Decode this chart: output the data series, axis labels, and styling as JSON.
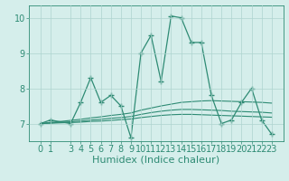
{
  "x_values": [
    0,
    1,
    3,
    4,
    5,
    6,
    7,
    8,
    9,
    10,
    11,
    12,
    13,
    14,
    15,
    16,
    17,
    18,
    19,
    20,
    21,
    22,
    23
  ],
  "y_main": [
    7.0,
    7.1,
    7.0,
    7.6,
    8.3,
    7.6,
    7.8,
    7.5,
    6.6,
    9.0,
    9.5,
    8.2,
    10.05,
    10.0,
    9.3,
    9.3,
    7.8,
    7.0,
    7.1,
    7.6,
    8.0,
    7.1,
    6.7
  ],
  "y_trend1": [
    7.0,
    7.03,
    7.09,
    7.12,
    7.16,
    7.19,
    7.23,
    7.26,
    7.3,
    7.38,
    7.44,
    7.5,
    7.55,
    7.6,
    7.62,
    7.64,
    7.65,
    7.64,
    7.63,
    7.62,
    7.61,
    7.6,
    7.58
  ],
  "y_trend2": [
    7.0,
    7.02,
    7.05,
    7.07,
    7.1,
    7.12,
    7.15,
    7.17,
    7.2,
    7.26,
    7.31,
    7.35,
    7.38,
    7.4,
    7.4,
    7.39,
    7.38,
    7.37,
    7.35,
    7.34,
    7.33,
    7.32,
    7.3
  ],
  "y_trend3": [
    7.0,
    7.01,
    7.03,
    7.04,
    7.06,
    7.07,
    7.09,
    7.11,
    7.13,
    7.17,
    7.2,
    7.23,
    7.25,
    7.26,
    7.26,
    7.25,
    7.24,
    7.23,
    7.22,
    7.21,
    7.2,
    7.19,
    7.18
  ],
  "line_color": "#2e8b74",
  "bg_color": "#d5eeeb",
  "grid_color": "#aed4cf",
  "ylim": [
    6.5,
    10.35
  ],
  "yticks": [
    7,
    8,
    9,
    10
  ],
  "xlabel": "Humidex (Indice chaleur)",
  "xlabel_fontsize": 8,
  "tick_fontsize": 7
}
